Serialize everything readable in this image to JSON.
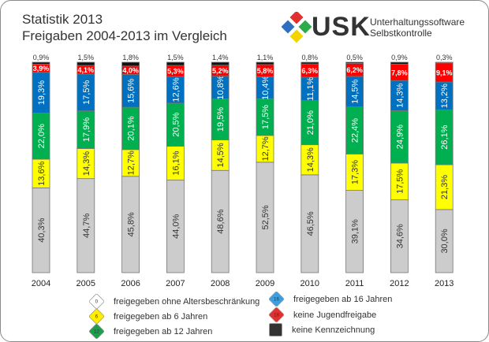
{
  "chart_data": {
    "type": "bar",
    "stacked": true,
    "title": "Statistik 2013",
    "subtitle": "Freigaben 2004-2013 im Vergleich",
    "categories": [
      "2004",
      "2005",
      "2006",
      "2007",
      "2008",
      "2009",
      "2010",
      "2011",
      "2012",
      "2013"
    ],
    "ylim": [
      0,
      100
    ],
    "grid": false,
    "legend_placement": "bottom",
    "series": [
      {
        "name": "freigegeben ohne Altersbeschränkung",
        "color": "#cccccc",
        "values": [
          40.3,
          44.7,
          45.8,
          44.0,
          48.6,
          52.5,
          46.5,
          39.1,
          34.6,
          30.0
        ]
      },
      {
        "name": "freigegeben ab 6 Jahren",
        "color": "#ffff00",
        "values": [
          13.6,
          14.3,
          12.7,
          16.1,
          14.5,
          12.7,
          14.3,
          17.3,
          17.5,
          21.3
        ]
      },
      {
        "name": "freigegeben ab 12 Jahren",
        "color": "#00b050",
        "values": [
          22.0,
          17.9,
          20.1,
          20.5,
          19.5,
          17.5,
          21.0,
          22.4,
          24.9,
          26.1
        ]
      },
      {
        "name": "freigegeben ab 16 Jahren",
        "color": "#0070c0",
        "values": [
          19.3,
          17.5,
          15.6,
          12.6,
          10.8,
          10.4,
          11.1,
          14.5,
          14.3,
          13.2
        ]
      },
      {
        "name": "keine Jugendfreigabe",
        "color": "#ff0000",
        "values": [
          3.9,
          4.1,
          4.0,
          5.3,
          5.2,
          5.8,
          6.3,
          6.2,
          7.8,
          9.1
        ]
      },
      {
        "name": "keine Kennzeichnung",
        "color": "#111111",
        "values": [
          0.9,
          1.5,
          1.8,
          1.5,
          1.4,
          1.1,
          0.8,
          0.5,
          0.9,
          0.3
        ]
      }
    ]
  },
  "logo": {
    "text": "USK",
    "line1": "Unterhaltungssoftware",
    "line2": "Selbstkontrolle"
  },
  "legend_icons": [
    "0",
    "6",
    "12",
    "16",
    "18",
    ""
  ]
}
